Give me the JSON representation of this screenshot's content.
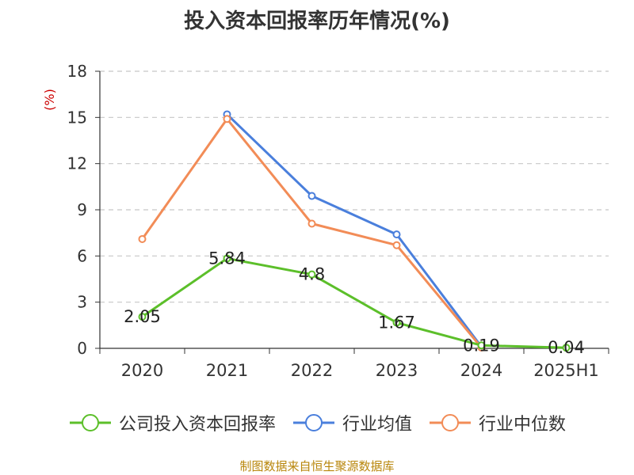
{
  "chart_data": {
    "type": "line",
    "title": "投入资本回报率历年情况(%)",
    "ylabel": "(%)",
    "xlabel": "",
    "categories": [
      "2020",
      "2021",
      "2022",
      "2023",
      "2024",
      "2025H1"
    ],
    "ylim": [
      0,
      18
    ],
    "yticks": [
      "0",
      "3",
      "6",
      "9",
      "12",
      "15",
      "18"
    ],
    "grid": true,
    "legend_position": "bottom",
    "series": [
      {
        "name": "公司投入资本回报率",
        "color": "#5cbf2a",
        "values": [
          2.05,
          5.84,
          4.8,
          1.67,
          0.19,
          0.04
        ],
        "labels": [
          "2.05",
          "5.84",
          "4.8",
          "1.67",
          "0.19",
          "0.04"
        ]
      },
      {
        "name": "行业均值",
        "color": "#4a7fdc",
        "values": [
          null,
          15.2,
          9.9,
          7.4,
          0.1,
          null
        ]
      },
      {
        "name": "行业中位数",
        "color": "#f28c57",
        "values": [
          7.1,
          14.9,
          8.1,
          6.7,
          0.05,
          null
        ]
      }
    ]
  },
  "source_note": "制图数据来自恒生聚源数据库"
}
